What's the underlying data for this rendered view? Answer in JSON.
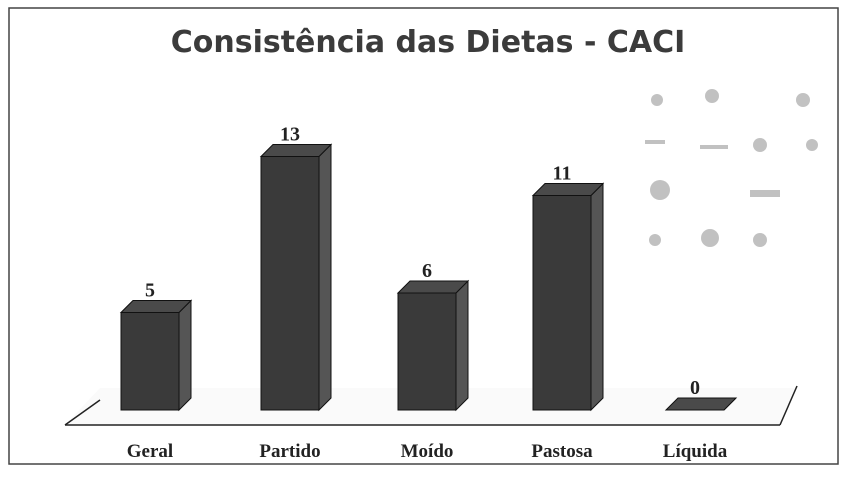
{
  "chart_data": {
    "type": "bar3d",
    "title": "Consistência das Dietas - CACI",
    "categories": [
      "Geral",
      "Partido",
      "Moído",
      "Pastosa",
      "Líquida"
    ],
    "values": [
      5,
      13,
      6,
      11,
      0
    ],
    "color": "#3a3a3a"
  }
}
